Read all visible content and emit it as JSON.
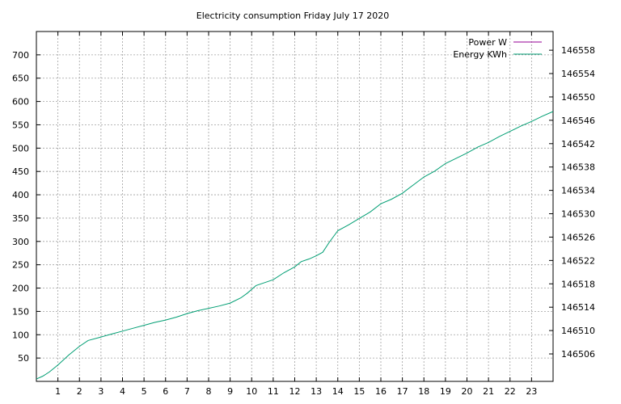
{
  "chart_data": {
    "type": "line",
    "title": "Electricity consumption Friday July 17 2020",
    "xlabel": "",
    "ylabel": "",
    "xlim": [
      0,
      24
    ],
    "ylim": [
      0,
      750
    ],
    "y2lim": [
      146501.3,
      146561.2
    ],
    "grid": true,
    "legend_position": "top-right",
    "x_ticks": [
      1,
      2,
      3,
      4,
      5,
      6,
      7,
      8,
      9,
      10,
      11,
      12,
      13,
      14,
      15,
      16,
      17,
      18,
      19,
      20,
      21,
      22,
      23
    ],
    "y_ticks": [
      50,
      100,
      150,
      200,
      250,
      300,
      350,
      400,
      450,
      500,
      550,
      600,
      650,
      700
    ],
    "y2_ticks": [
      146506,
      146510,
      146514,
      146518,
      146522,
      146526,
      146530,
      146534,
      146538,
      146542,
      146546,
      146550,
      146554,
      146558
    ],
    "series": [
      {
        "name": "Power W",
        "axis": "y",
        "color": "#940094",
        "x": [],
        "values": []
      },
      {
        "name": "Energy KWh",
        "axis": "y2",
        "color": "#009e73",
        "x": [
          0,
          0.3,
          0.6,
          1.0,
          1.5,
          2.0,
          2.4,
          3.0,
          3.5,
          4.0,
          4.5,
          5.0,
          5.5,
          6.0,
          6.5,
          7.0,
          7.5,
          8.0,
          8.5,
          9.0,
          9.5,
          9.8,
          10.2,
          10.6,
          11.0,
          11.5,
          12.0,
          12.3,
          12.7,
          13.0,
          13.3,
          13.6,
          14.0,
          14.5,
          15.0,
          15.5,
          16.0,
          16.5,
          17.0,
          17.5,
          18.0,
          18.5,
          19.0,
          19.5,
          20.0,
          20.5,
          21.0,
          21.5,
          22.0,
          22.5,
          23.0,
          23.5,
          24.0
        ],
        "values": [
          146501.7,
          146502.2,
          146502.9,
          146504.1,
          146505.8,
          146507.3,
          146508.3,
          146508.9,
          146509.4,
          146509.9,
          146510.4,
          146510.9,
          146511.4,
          146511.8,
          146512.3,
          146512.9,
          146513.4,
          146513.8,
          146514.2,
          146514.7,
          146515.6,
          146516.4,
          146517.7,
          146518.2,
          146518.7,
          146519.9,
          146520.9,
          146521.8,
          146522.3,
          146522.8,
          146523.4,
          146525.1,
          146527.1,
          146528.1,
          146529.2,
          146530.3,
          146531.7,
          146532.5,
          146533.5,
          146534.9,
          146536.3,
          146537.3,
          146538.6,
          146539.5,
          146540.4,
          146541.4,
          146542.2,
          146543.2,
          146544.1,
          146545.0,
          146545.8,
          146546.7,
          146547.5
        ]
      }
    ]
  }
}
